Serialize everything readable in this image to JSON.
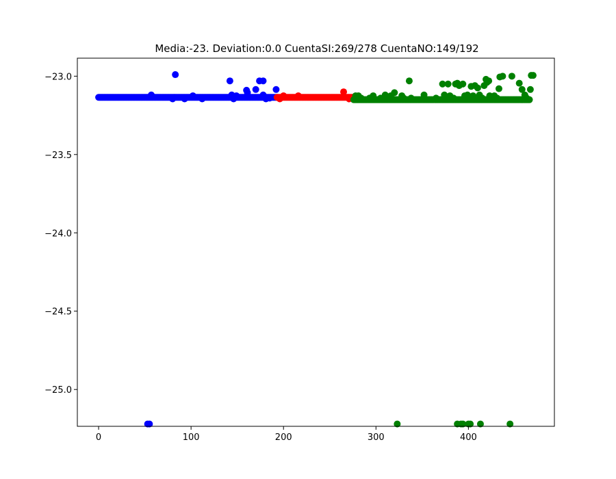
{
  "chart_data": {
    "type": "scatter",
    "title": "Media:-23. Deviation:0.0 CuentaSI:269/278 CuentaNO:149/192",
    "xlabel": "",
    "ylabel": "",
    "xlim": [
      -23,
      493
    ],
    "ylim": [
      -25.235,
      -22.885
    ],
    "xticks": [
      0,
      100,
      200,
      300,
      400
    ],
    "xtick_labels": [
      "0",
      "100",
      "200",
      "300",
      "400"
    ],
    "yticks": [
      -23.0,
      -23.5,
      -24.0,
      -24.5,
      -25.0
    ],
    "ytick_labels": [
      "−23.0",
      "−23.5",
      "−24.0",
      "−24.5",
      "−25.0"
    ],
    "grid": false,
    "legend": "none",
    "series": [
      {
        "color": "#0000ff",
        "points": [
          {
            "x": 53,
            "y": -25.22
          },
          {
            "x": 55,
            "y": -25.22
          },
          {
            "x": 57,
            "y": -23.12
          },
          {
            "x": 80,
            "y": -23.145
          },
          {
            "x": 83,
            "y": -22.99
          },
          {
            "x": 93,
            "y": -23.145
          },
          {
            "x": 102,
            "y": -23.125
          },
          {
            "x": 112,
            "y": -23.145
          },
          {
            "x": 142,
            "y": -23.03
          },
          {
            "x": 144,
            "y": -23.12
          },
          {
            "x": 146,
            "y": -23.145
          },
          {
            "x": 149,
            "y": -23.125
          },
          {
            "x": 160,
            "y": -23.09
          },
          {
            "x": 161,
            "y": -23.105
          },
          {
            "x": 170,
            "y": -23.085
          },
          {
            "x": 174,
            "y": -23.03
          },
          {
            "x": 178,
            "y": -23.03
          },
          {
            "x": 178,
            "y": -23.12
          },
          {
            "x": 181,
            "y": -23.145
          },
          {
            "x": 185,
            "y": -23.14
          },
          {
            "x": 192,
            "y": -23.085
          }
        ],
        "band": {
          "x_start": 0,
          "x_end": 193,
          "y": -23.135
        }
      },
      {
        "color": "#ff0000",
        "points": [
          {
            "x": 196,
            "y": -23.145
          },
          {
            "x": 200,
            "y": -23.125
          },
          {
            "x": 216,
            "y": -23.125
          },
          {
            "x": 265,
            "y": -23.1
          },
          {
            "x": 271,
            "y": -23.145
          }
        ],
        "band": {
          "x_start": 193,
          "x_end": 276,
          "y": -23.135
        }
      },
      {
        "color": "#008000",
        "points": [
          {
            "x": 278,
            "y": -23.125
          },
          {
            "x": 281,
            "y": -23.125
          },
          {
            "x": 284,
            "y": -23.14
          },
          {
            "x": 293,
            "y": -23.14
          },
          {
            "x": 297,
            "y": -23.125
          },
          {
            "x": 305,
            "y": -23.14
          },
          {
            "x": 310,
            "y": -23.12
          },
          {
            "x": 316,
            "y": -23.125
          },
          {
            "x": 320,
            "y": -23.105
          },
          {
            "x": 323,
            "y": -25.22
          },
          {
            "x": 328,
            "y": -23.125
          },
          {
            "x": 330,
            "y": -23.14
          },
          {
            "x": 336,
            "y": -23.03
          },
          {
            "x": 338,
            "y": -23.14
          },
          {
            "x": 352,
            "y": -23.12
          },
          {
            "x": 365,
            "y": -23.14
          },
          {
            "x": 372,
            "y": -23.05
          },
          {
            "x": 374,
            "y": -23.12
          },
          {
            "x": 378,
            "y": -23.05
          },
          {
            "x": 380,
            "y": -23.125
          },
          {
            "x": 384,
            "y": -23.14
          },
          {
            "x": 386,
            "y": -23.05
          },
          {
            "x": 388,
            "y": -23.045
          },
          {
            "x": 388,
            "y": -25.22
          },
          {
            "x": 390,
            "y": -23.06
          },
          {
            "x": 392,
            "y": -25.22
          },
          {
            "x": 394,
            "y": -23.05
          },
          {
            "x": 394,
            "y": -25.22
          },
          {
            "x": 396,
            "y": -23.125
          },
          {
            "x": 397,
            "y": -23.145
          },
          {
            "x": 399,
            "y": -23.12
          },
          {
            "x": 400,
            "y": -25.22
          },
          {
            "x": 402,
            "y": -25.22
          },
          {
            "x": 403,
            "y": -23.065
          },
          {
            "x": 405,
            "y": -23.125
          },
          {
            "x": 407,
            "y": -23.06
          },
          {
            "x": 410,
            "y": -23.075
          },
          {
            "x": 412,
            "y": -23.12
          },
          {
            "x": 413,
            "y": -25.22
          },
          {
            "x": 415,
            "y": -23.14
          },
          {
            "x": 417,
            "y": -23.06
          },
          {
            "x": 419,
            "y": -23.02
          },
          {
            "x": 420,
            "y": -23.04
          },
          {
            "x": 422,
            "y": -23.03
          },
          {
            "x": 423,
            "y": -23.125
          },
          {
            "x": 425,
            "y": -23.14
          },
          {
            "x": 428,
            "y": -23.125
          },
          {
            "x": 431,
            "y": -23.14
          },
          {
            "x": 433,
            "y": -23.08
          },
          {
            "x": 434,
            "y": -23.005
          },
          {
            "x": 437,
            "y": -23.0
          },
          {
            "x": 445,
            "y": -25.22
          },
          {
            "x": 447,
            "y": -23.0
          },
          {
            "x": 455,
            "y": -23.045
          },
          {
            "x": 458,
            "y": -23.085
          },
          {
            "x": 461,
            "y": -23.12
          },
          {
            "x": 463,
            "y": -23.14
          },
          {
            "x": 467,
            "y": -23.085
          },
          {
            "x": 468,
            "y": -22.995
          },
          {
            "x": 470,
            "y": -22.995
          }
        ],
        "band": {
          "x_start": 276,
          "x_end": 466,
          "y": -23.15
        }
      }
    ]
  }
}
